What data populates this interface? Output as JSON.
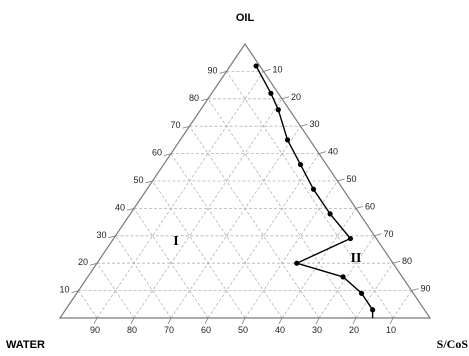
{
  "vertices": {
    "top": "OIL",
    "left": "WATER",
    "right": "S/CoS"
  },
  "regions": [
    "I",
    "II"
  ],
  "left_axis_labels": [
    "90",
    "80",
    "70",
    "60",
    "50",
    "40",
    "30",
    "20",
    "10"
  ],
  "right_axis_labels": [
    "10",
    "20",
    "30",
    "40",
    "50",
    "60",
    "70",
    "80",
    "90"
  ],
  "bottom_axis_labels": [
    "90",
    "80",
    "70",
    "60",
    "50",
    "40",
    "30",
    "20",
    "10"
  ],
  "phase_boundary": [
    {
      "oil": 92,
      "water": 1,
      "scos": 7
    },
    {
      "oil": 82,
      "water": 2,
      "scos": 16
    },
    {
      "oil": 76,
      "water": 3,
      "scos": 21
    },
    {
      "oil": 65,
      "water": 6,
      "scos": 29
    },
    {
      "oil": 56,
      "water": 7,
      "scos": 37
    },
    {
      "oil": 47,
      "water": 8,
      "scos": 45
    },
    {
      "oil": 38,
      "water": 8,
      "scos": 54
    },
    {
      "oil": 29,
      "water": 7,
      "scos": 64
    },
    {
      "oil": 20,
      "water": 26,
      "scos": 54
    },
    {
      "oil": 15,
      "water": 16,
      "scos": 69
    },
    {
      "oil": 9,
      "water": 14,
      "scos": 77
    },
    {
      "oil": 3,
      "water": 14,
      "scos": 83
    }
  ],
  "colors": {
    "frame": "#7a7a7a",
    "grid": "#b5b5b5",
    "curve": "#000000"
  }
}
